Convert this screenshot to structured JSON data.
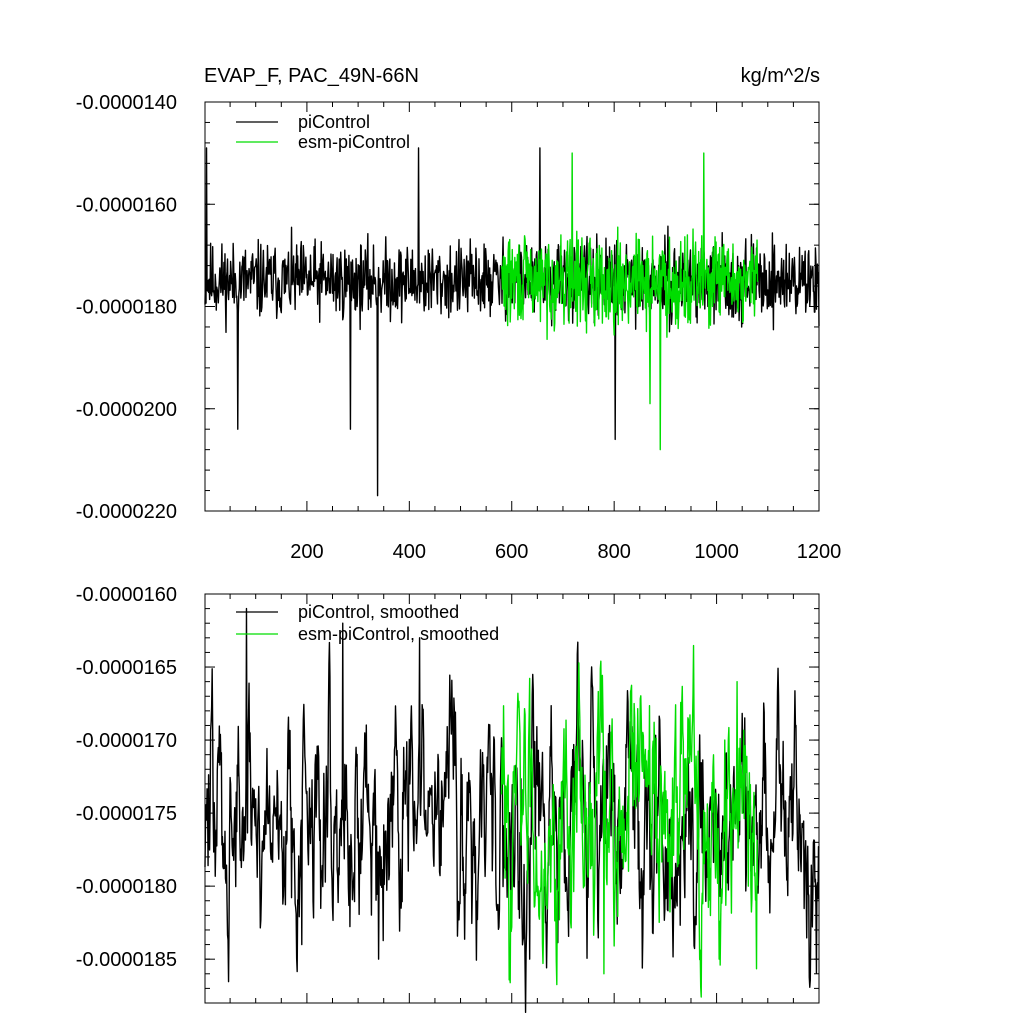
{
  "chart_data": [
    {
      "type": "line",
      "title": "EVAP_F, PAC_49N-66N",
      "units": "kg/m^2/s",
      "xlim": [
        1,
        1200
      ],
      "ylim": [
        -2.2e-05,
        -1.4e-05
      ],
      "x_ticks": [
        200,
        400,
        600,
        800,
        1000,
        1200
      ],
      "x_tick_labels": [
        "200",
        "400",
        "600",
        "800",
        "1000",
        "1200"
      ],
      "y_ticks": [
        -1.4e-05,
        -1.6e-05,
        -1.8e-05,
        -2e-05,
        -2.2e-05
      ],
      "y_tick_labels": [
        "-0.0000140",
        "-0.0000160",
        "-0.0000180",
        "-0.0000200",
        "-0.0000220"
      ],
      "legend_placement": "top-left",
      "series": [
        {
          "name": "piControl",
          "color": "#000000",
          "x_start": 1,
          "x_end": 1200,
          "mean": -1.75e-05,
          "amplitude": 1.1e-06,
          "seed": 11,
          "spikes": [
            {
              "x": 65,
              "y": -2.04e-05
            },
            {
              "x": 285,
              "y": -2.04e-05
            },
            {
              "x": 338,
              "y": -2.17e-05
            },
            {
              "x": 418,
              "y": -1.49e-05
            },
            {
              "x": 802,
              "y": -2.06e-05
            },
            {
              "x": 4,
              "y": -1.49e-05
            },
            {
              "x": 655,
              "y": -1.49e-05
            }
          ]
        },
        {
          "name": "esm-piControl",
          "color": "#00dd00",
          "x_start": 580,
          "x_end": 1080,
          "mean": -1.75e-05,
          "amplitude": 1.3e-06,
          "seed": 29,
          "spikes": [
            {
              "x": 890,
              "y": -2.08e-05
            },
            {
              "x": 870,
              "y": -1.99e-05
            },
            {
              "x": 718,
              "y": -1.5e-05
            },
            {
              "x": 975,
              "y": -1.5e-05
            }
          ]
        }
      ]
    },
    {
      "type": "line",
      "title": "",
      "xlim": [
        1,
        1200
      ],
      "ylim": [
        -1.88e-05,
        -1.6e-05
      ],
      "x_ticks": [
        200,
        400,
        600,
        800,
        1000,
        1200
      ],
      "y_ticks": [
        -1.6e-05,
        -1.65e-05,
        -1.7e-05,
        -1.75e-05,
        -1.8e-05,
        -1.85e-05
      ],
      "y_tick_labels": [
        "-0.0000160",
        "-0.0000165",
        "-0.0000170",
        "-0.0000175",
        "-0.0000180",
        "-0.0000185"
      ],
      "legend_placement": "top-left",
      "series": [
        {
          "name": "piControl, smoothed",
          "color": "#000000",
          "x_start": 1,
          "x_end": 1200,
          "mean": -1.75e-05,
          "amplitude": 2.6e-06,
          "seed": 47,
          "spikes": [
            {
              "x": 82,
              "y": -1.61e-05
            },
            {
              "x": 270,
              "y": -1.62e-05
            },
            {
              "x": 420,
              "y": -1.63e-05
            },
            {
              "x": 190,
              "y": -1.84e-05
            },
            {
              "x": 340,
              "y": -1.85e-05
            },
            {
              "x": 635,
              "y": -1.85e-05
            }
          ]
        },
        {
          "name": "esm-piControl, smoothed",
          "color": "#00dd00",
          "x_start": 580,
          "x_end": 1080,
          "mean": -1.75e-05,
          "amplitude": 2.8e-06,
          "seed": 83,
          "spikes": [
            {
              "x": 780,
              "y": -1.86e-05
            },
            {
              "x": 1040,
              "y": -1.66e-05
            },
            {
              "x": 730,
              "y": -1.67e-05
            },
            {
              "x": 1005,
              "y": -1.85e-05
            }
          ]
        }
      ]
    }
  ]
}
